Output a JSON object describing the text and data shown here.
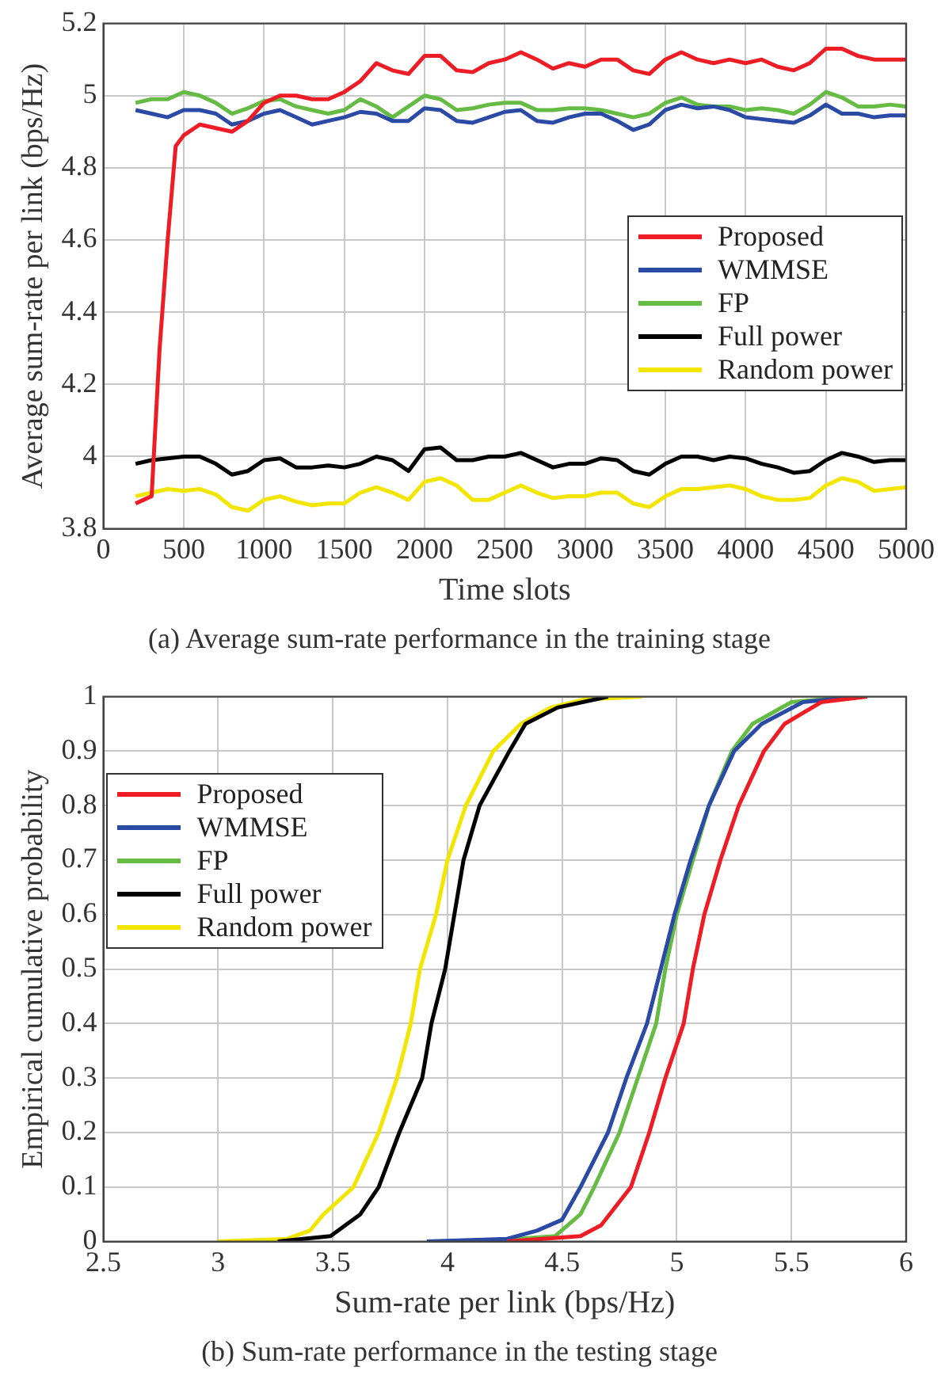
{
  "chart_data": [
    {
      "type": "line",
      "title": "(a) Average sum-rate performance in the training stage",
      "xlabel": "Time slots",
      "ylabel": "Average sum-rate per link (bps/Hz)",
      "x": [
        200,
        300,
        400,
        500,
        600,
        700,
        800,
        900,
        1000,
        1100,
        1200,
        1300,
        1400,
        1500,
        1600,
        1700,
        1800,
        1900,
        2000,
        2100,
        2200,
        2300,
        2400,
        2500,
        2600,
        2700,
        2800,
        2900,
        3000,
        3100,
        3200,
        3300,
        3400,
        3500,
        3600,
        3700,
        3800,
        3900,
        4000,
        4100,
        4200,
        4300,
        4400,
        4500,
        4600,
        4700,
        4800,
        4900,
        5000
      ],
      "series": [
        {
          "name": "Proposed",
          "color": "#ee1c25",
          "x": [
            200,
            250,
            300,
            350,
            400,
            450,
            500,
            600,
            700,
            800,
            900,
            1000,
            1100,
            1200,
            1300,
            1400,
            1500,
            1600,
            1700,
            1800,
            1900,
            2000,
            2100,
            2200,
            2300,
            2400,
            2500,
            2600,
            2700,
            2800,
            2900,
            3000,
            3100,
            3200,
            3300,
            3400,
            3500,
            3600,
            3700,
            3800,
            3900,
            4000,
            4100,
            4200,
            4300,
            4400,
            4500,
            4600,
            4700,
            4800,
            4900,
            5000
          ],
          "values": [
            3.87,
            3.88,
            3.89,
            4.3,
            4.6,
            4.86,
            4.89,
            4.92,
            4.91,
            4.9,
            4.93,
            4.98,
            5.0,
            5.0,
            4.99,
            4.99,
            5.01,
            5.04,
            5.09,
            5.07,
            5.06,
            5.11,
            5.11,
            5.07,
            5.065,
            5.09,
            5.1,
            5.12,
            5.1,
            5.075,
            5.09,
            5.08,
            5.1,
            5.1,
            5.07,
            5.06,
            5.1,
            5.12,
            5.1,
            5.09,
            5.1,
            5.09,
            5.1,
            5.08,
            5.07,
            5.09,
            5.13,
            5.13,
            5.11,
            5.1,
            5.1,
            5.1
          ]
        },
        {
          "name": "WMMSE",
          "color": "#2b4aa5",
          "values": [
            4.96,
            4.95,
            4.94,
            4.96,
            4.96,
            4.95,
            4.92,
            4.93,
            4.95,
            4.96,
            4.94,
            4.92,
            4.93,
            4.94,
            4.955,
            4.95,
            4.93,
            4.93,
            4.965,
            4.96,
            4.93,
            4.925,
            4.94,
            4.955,
            4.96,
            4.93,
            4.925,
            4.94,
            4.95,
            4.95,
            4.93,
            4.905,
            4.92,
            4.96,
            4.975,
            4.965,
            4.97,
            4.96,
            4.94,
            4.935,
            4.93,
            4.925,
            4.945,
            4.975,
            4.95,
            4.95,
            4.94,
            4.945,
            4.945
          ]
        },
        {
          "name": "FP",
          "color": "#66bb44",
          "values": [
            4.98,
            4.99,
            4.99,
            5.01,
            5.0,
            4.98,
            4.95,
            4.965,
            4.985,
            4.99,
            4.97,
            4.96,
            4.95,
            4.96,
            4.99,
            4.97,
            4.94,
            4.97,
            5.0,
            4.99,
            4.96,
            4.965,
            4.975,
            4.98,
            4.98,
            4.96,
            4.96,
            4.965,
            4.965,
            4.96,
            4.95,
            4.94,
            4.95,
            4.98,
            4.995,
            4.975,
            4.97,
            4.97,
            4.96,
            4.965,
            4.96,
            4.95,
            4.975,
            5.01,
            4.995,
            4.97,
            4.97,
            4.975,
            4.97
          ]
        },
        {
          "name": "Full power",
          "color": "#000000",
          "values": [
            3.98,
            3.99,
            3.995,
            4.0,
            4.0,
            3.98,
            3.95,
            3.96,
            3.99,
            3.995,
            3.97,
            3.97,
            3.975,
            3.97,
            3.98,
            4.0,
            3.99,
            3.96,
            4.02,
            4.025,
            3.99,
            3.99,
            4.0,
            4.0,
            4.01,
            3.99,
            3.97,
            3.98,
            3.98,
            3.995,
            3.99,
            3.96,
            3.95,
            3.98,
            4.0,
            4.0,
            3.99,
            4.0,
            3.995,
            3.98,
            3.97,
            3.955,
            3.96,
            3.99,
            4.01,
            4.0,
            3.985,
            3.99,
            3.99
          ]
        },
        {
          "name": "Random power",
          "color": "#f2e600",
          "values": [
            3.89,
            3.9,
            3.91,
            3.905,
            3.91,
            3.895,
            3.86,
            3.85,
            3.88,
            3.89,
            3.875,
            3.865,
            3.87,
            3.87,
            3.9,
            3.915,
            3.9,
            3.88,
            3.93,
            3.94,
            3.92,
            3.88,
            3.88,
            3.9,
            3.92,
            3.9,
            3.885,
            3.89,
            3.89,
            3.9,
            3.9,
            3.87,
            3.86,
            3.89,
            3.91,
            3.91,
            3.915,
            3.92,
            3.91,
            3.89,
            3.88,
            3.88,
            3.885,
            3.92,
            3.94,
            3.93,
            3.905,
            3.91,
            3.915
          ]
        }
      ],
      "xlim": [
        0,
        5000
      ],
      "xticks": [
        0,
        500,
        1000,
        1500,
        2000,
        2500,
        3000,
        3500,
        4000,
        4500,
        5000
      ],
      "ylim": [
        3.8,
        5.2
      ],
      "yticks": [
        3.8,
        4,
        4.2,
        4.4,
        4.6,
        4.8,
        5,
        5.2
      ],
      "grid": true,
      "legend": "right"
    },
    {
      "type": "line",
      "title": "(b) Sum-rate performance in the testing stage",
      "xlabel": "Sum-rate per link (bps/Hz)",
      "ylabel": "Empirical cumulative probability",
      "series": [
        {
          "name": "Proposed",
          "color": "#ee1c25",
          "x": [
            4.26,
            4.58,
            4.67,
            4.8,
            4.88,
            4.95,
            5.03,
            5.07,
            5.12,
            5.19,
            5.27,
            5.38,
            5.47,
            5.63,
            5.83
          ],
          "values": [
            0,
            0.01,
            0.03,
            0.1,
            0.2,
            0.3,
            0.4,
            0.5,
            0.6,
            0.7,
            0.8,
            0.9,
            0.95,
            0.99,
            1
          ]
        },
        {
          "name": "WMMSE",
          "color": "#2b4aa5",
          "x": [
            3.91,
            4.26,
            4.39,
            4.5,
            4.58,
            4.7,
            4.78,
            4.87,
            4.93,
            4.99,
            5.06,
            5.14,
            5.25,
            5.37,
            5.55,
            5.79
          ],
          "values": [
            0,
            0.005,
            0.02,
            0.04,
            0.1,
            0.2,
            0.3,
            0.4,
            0.5,
            0.6,
            0.7,
            0.8,
            0.9,
            0.95,
            0.99,
            1
          ]
        },
        {
          "name": "FP",
          "color": "#66bb44",
          "x": [
            4.16,
            4.47,
            4.58,
            4.64,
            4.75,
            4.83,
            4.91,
            4.95,
            5.0,
            5.07,
            5.14,
            5.24,
            5.33,
            5.5,
            5.76
          ],
          "values": [
            0,
            0.01,
            0.05,
            0.1,
            0.2,
            0.3,
            0.4,
            0.5,
            0.6,
            0.7,
            0.8,
            0.9,
            0.95,
            0.99,
            1
          ]
        },
        {
          "name": "Full power",
          "color": "#000000",
          "x": [
            3.26,
            3.49,
            3.62,
            3.7,
            3.79,
            3.89,
            3.93,
            3.99,
            4.03,
            4.07,
            4.14,
            4.27,
            4.34,
            4.48,
            4.7
          ],
          "values": [
            0,
            0.01,
            0.05,
            0.1,
            0.2,
            0.3,
            0.4,
            0.5,
            0.6,
            0.7,
            0.8,
            0.9,
            0.95,
            0.98,
            1
          ]
        },
        {
          "name": "Random power",
          "color": "#f2e600",
          "x": [
            3.0,
            3.3,
            3.4,
            3.46,
            3.59,
            3.7,
            3.78,
            3.84,
            3.88,
            3.95,
            4.0,
            4.08,
            4.2,
            4.32,
            4.45,
            4.6,
            4.85
          ],
          "values": [
            0,
            0.005,
            0.02,
            0.05,
            0.1,
            0.2,
            0.3,
            0.4,
            0.5,
            0.6,
            0.7,
            0.8,
            0.9,
            0.95,
            0.98,
            0.995,
            1
          ]
        }
      ],
      "xlim": [
        2.5,
        6
      ],
      "xticks": [
        2.5,
        3,
        3.5,
        4,
        4.5,
        5,
        5.5,
        6
      ],
      "ylim": [
        0,
        1
      ],
      "yticks": [
        0,
        0.1,
        0.2,
        0.3,
        0.4,
        0.5,
        0.6,
        0.7,
        0.8,
        0.9,
        1
      ],
      "grid": true,
      "legend": "top left"
    }
  ]
}
